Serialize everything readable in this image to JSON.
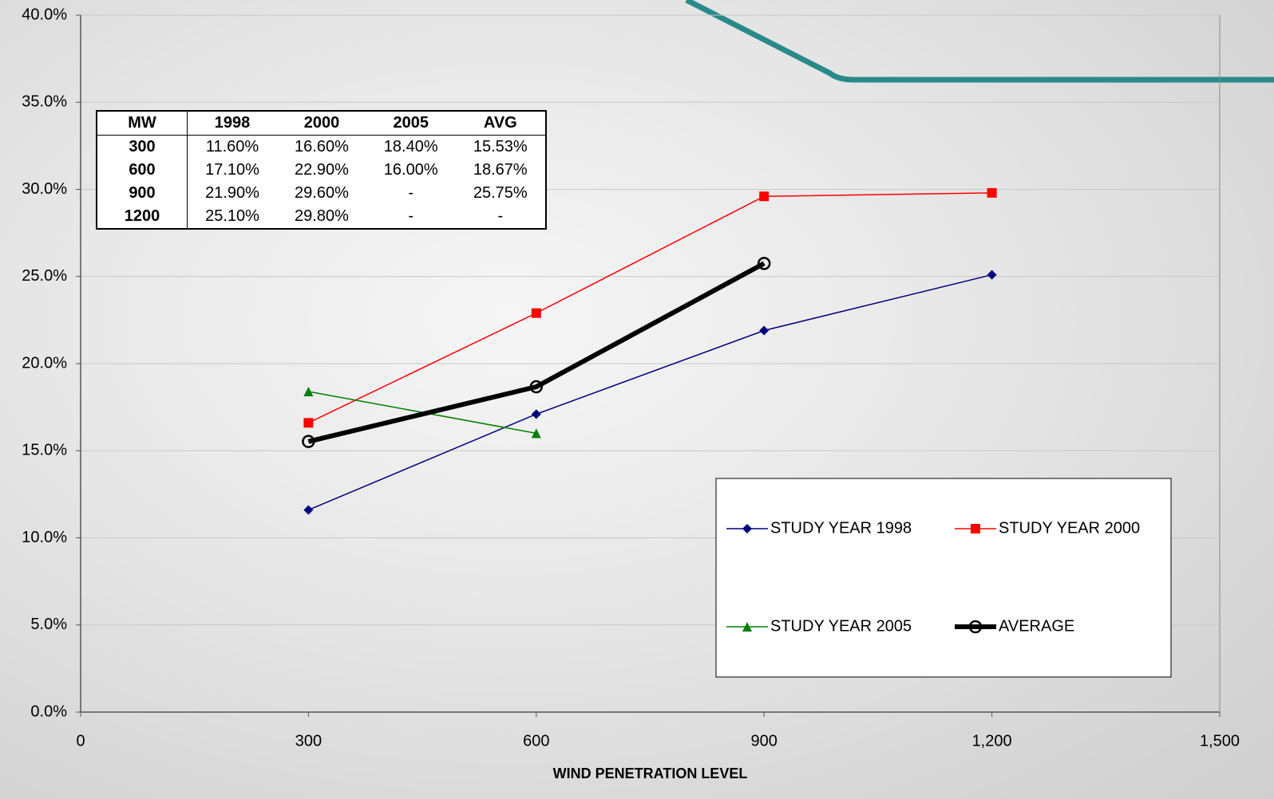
{
  "chart_data": {
    "type": "line",
    "x": [
      300,
      600,
      900,
      1200
    ],
    "xlim": [
      0,
      1500
    ],
    "xticks": [
      0,
      300,
      600,
      900,
      {
        "value": 1200,
        "label": "1,200"
      },
      {
        "value": 1500,
        "label": "1,500"
      }
    ],
    "ylim": [
      0,
      40
    ],
    "yticks": [
      {
        "value": 0,
        "label": "0.0%"
      },
      {
        "value": 5,
        "label": "5.0%"
      },
      {
        "value": 10,
        "label": "10.0%"
      },
      {
        "value": 15,
        "label": "15.0%"
      },
      {
        "value": 20,
        "label": "20.0%"
      },
      {
        "value": 25,
        "label": "25.0%"
      },
      {
        "value": 30,
        "label": "30.0%"
      },
      {
        "value": 35,
        "label": "35.0%"
      },
      {
        "value": 40,
        "label": "40.0%"
      }
    ],
    "grid": true,
    "x_label": "WIND PENETRATION LEVEL",
    "series": [
      {
        "name": "STUDY YEAR 1998",
        "color": "#000080",
        "marker": "diamond",
        "values": [
          11.6,
          17.1,
          21.9,
          25.1
        ]
      },
      {
        "name": "STUDY YEAR 2000",
        "color": "#ff0000",
        "marker": "square",
        "values": [
          16.6,
          22.9,
          29.6,
          29.8
        ]
      },
      {
        "name": "STUDY YEAR 2005",
        "color": "#008000",
        "marker": "triangle",
        "values": [
          18.4,
          16.0,
          null,
          null
        ]
      },
      {
        "name": "AVERAGE",
        "color": "#000000",
        "marker": "circle",
        "values": [
          15.53,
          18.67,
          25.75,
          null
        ]
      }
    ],
    "table": {
      "header": [
        "MW",
        "1998",
        "2000",
        "2005",
        "AVG"
      ],
      "rows": [
        [
          "300",
          "11.60%",
          "16.60%",
          "18.40%",
          "15.53%"
        ],
        [
          "600",
          "17.10%",
          "22.90%",
          "16.00%",
          "18.67%"
        ],
        [
          "900",
          "21.90%",
          "29.60%",
          "-",
          "25.75%"
        ],
        [
          "1200",
          "25.10%",
          "29.80%",
          "-",
          "-"
        ]
      ]
    }
  }
}
